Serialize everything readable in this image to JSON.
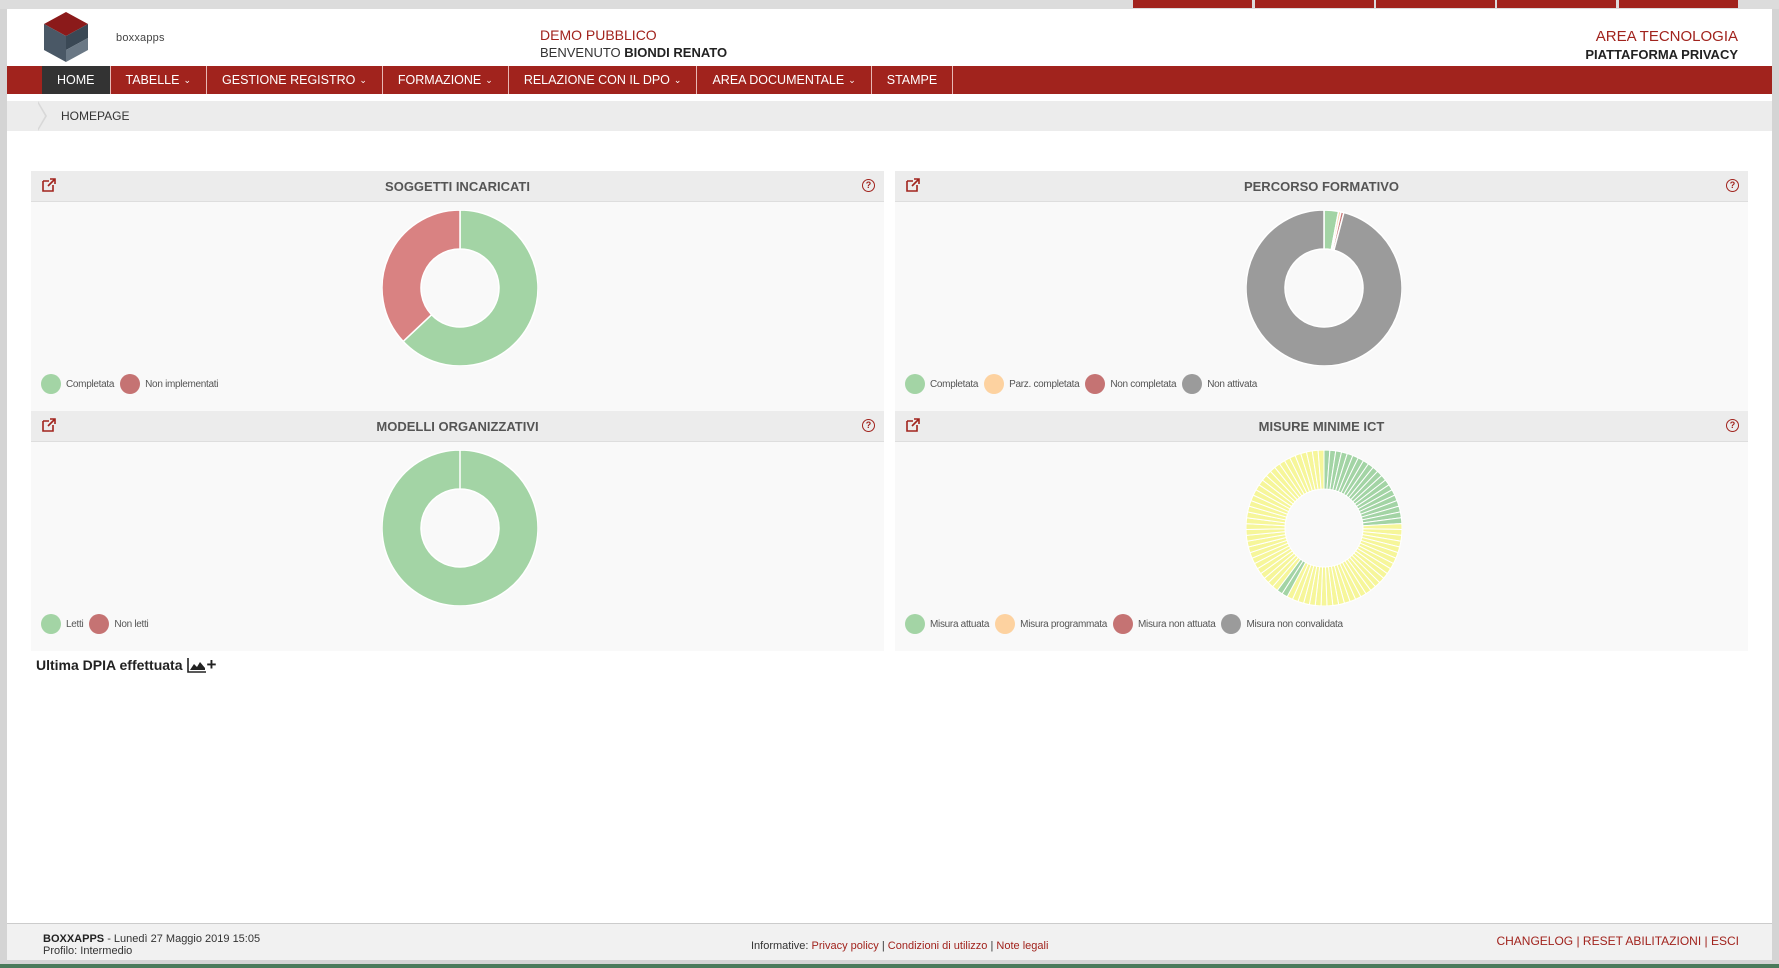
{
  "header": {
    "logo_text": "boxxapps",
    "company": "DEMO PUBBLICO",
    "welcome_prefix": "BENVENUTO",
    "user_name": "BIONDI RENATO",
    "area": "AREA TECNOLOGIA",
    "platform": "PIATTAFORMA PRIVACY"
  },
  "nav": {
    "items": [
      {
        "label": "HOME"
      },
      {
        "label": "TABELLE"
      },
      {
        "label": "GESTIONE REGISTRO"
      },
      {
        "label": "FORMAZIONE"
      },
      {
        "label": "RELAZIONE CON IL DPO"
      },
      {
        "label": "AREA DOCUMENTALE"
      },
      {
        "label": "STAMPE"
      }
    ]
  },
  "breadcrumb": {
    "current": "HOMEPAGE"
  },
  "colors": {
    "brand": "#a1231d",
    "green": "#a3d4a5",
    "red": "#d98282",
    "orange": "#fdd2a0",
    "gray": "#9b9b9b",
    "yellow": "#f6f69a",
    "dark_red": "#c57373"
  },
  "panels": [
    {
      "title": "SOGGETTI INCARICATI",
      "legend": [
        "Completata",
        "Non implementati"
      ],
      "chart_data": {
        "type": "pie",
        "categories": [
          "Completata",
          "Non implementati"
        ],
        "values": [
          63,
          37
        ]
      }
    },
    {
      "title": "PERCORSO FORMATIVO",
      "legend": [
        "Completata",
        "Parz. completata",
        "Non completata",
        "Non attivata"
      ],
      "chart_data": {
        "type": "pie",
        "categories": [
          "Completata",
          "Parz. completata",
          "Non completata",
          "Non attivata"
        ],
        "values": [
          3,
          0.5,
          0.6,
          95.9
        ]
      }
    },
    {
      "title": "MODELLI ORGANIZZATIVI",
      "legend": [
        "Letti",
        "Non letti"
      ],
      "chart_data": {
        "type": "pie",
        "categories": [
          "Letti",
          "Non letti"
        ],
        "values": [
          100,
          0
        ]
      }
    },
    {
      "title": "MISURE MINIME ICT",
      "legend": [
        "Misura attuata",
        "Misura programmata",
        "Misura non attuata",
        "Misura non convalidata"
      ],
      "chart_data": {
        "type": "pie",
        "categories": [
          "Misura attuata",
          "Misura programmata",
          "Misura non attuata",
          "Misura non convalidata"
        ],
        "values": [
          22,
          61,
          0,
          0
        ]
      }
    }
  ],
  "dpia": {
    "label": "Ultima DPIA effettuata"
  },
  "footer": {
    "brand": "BOXXAPPS",
    "datetime": " - Lunedì 27 Maggio 2019 15:05",
    "profile": "Profilo: Intermedio",
    "informative_label": "Informative:",
    "privacy": "Privacy policy",
    "conditions": "Condizioni di utilizzo",
    "legal": "Note legali",
    "changelog": "CHANGELOG",
    "reset": "RESET ABILITAZIONI",
    "exit": "ESCI"
  }
}
